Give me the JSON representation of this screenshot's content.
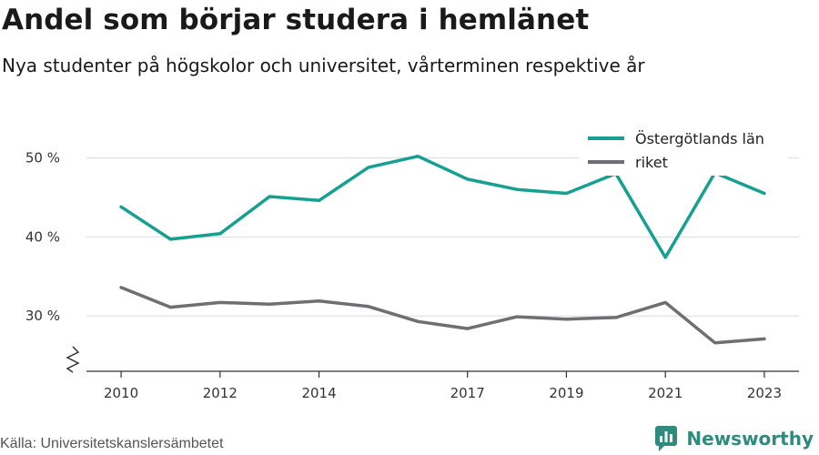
{
  "header": {
    "title": "Andel som börjar studera i hemlänet",
    "subtitle": "Nya studenter på högskolor och universitet, vårterminen respektive år"
  },
  "footer": {
    "source": "Källa: Universitetskanslersämbetet",
    "brand": "Newsworthy"
  },
  "icons": {
    "brand_logo": "bar-chart-logo-icon",
    "axis_break": "axis-break-icon"
  },
  "colors": {
    "series_1": "#16a090",
    "series_2": "#6e6e73",
    "grid": "#dddddd",
    "brand": "#2e8b7d"
  },
  "chart_data": {
    "type": "line",
    "title": "Andel som börjar studera i hemlänet",
    "subtitle": "Nya studenter på högskolor och universitet, vårterminen respektive år",
    "x": [
      2010,
      2011,
      2012,
      2013,
      2014,
      2015,
      2016,
      2017,
      2018,
      2019,
      2020,
      2021,
      2022,
      2023
    ],
    "x_tick_labels": [
      "2010",
      "2012",
      "2014",
      "2017",
      "2019",
      "2021",
      "2023"
    ],
    "x_tick_values": [
      2010,
      2012,
      2014,
      2017,
      2019,
      2021,
      2023
    ],
    "y_tick_labels": [
      "30 %",
      "40 %",
      "50 %"
    ],
    "y_tick_values": [
      30,
      40,
      50
    ],
    "ylim": [
      23,
      55
    ],
    "xlim": [
      2009.3,
      2023.7
    ],
    "grid": "horizontal",
    "legend": "top-right",
    "series": [
      {
        "name": "Östergötlands län",
        "values": [
          43.8,
          39.7,
          40.4,
          45.1,
          44.6,
          48.8,
          50.2,
          47.3,
          46.0,
          45.5,
          48.0,
          37.4,
          48.1,
          45.5
        ]
      },
      {
        "name": "riket",
        "values": [
          33.6,
          31.1,
          31.7,
          31.5,
          31.9,
          31.2,
          29.3,
          28.4,
          29.9,
          29.6,
          29.8,
          31.7,
          26.6,
          27.1
        ]
      }
    ]
  }
}
